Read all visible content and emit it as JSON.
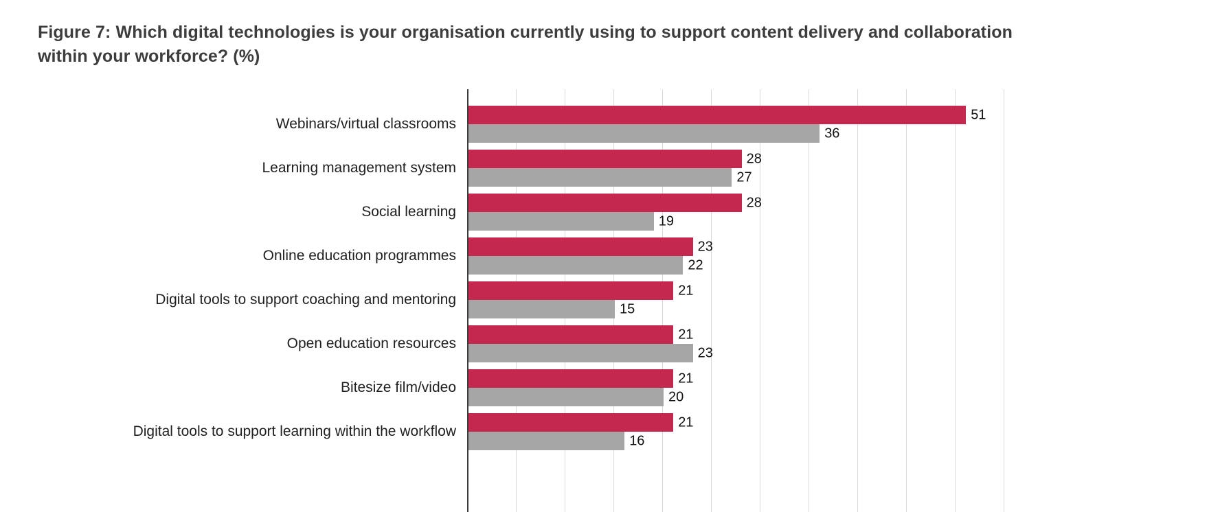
{
  "title": "Figure 7: Which digital technologies is your organisation currently using to support content delivery and collaboration within your workforce? (%)",
  "chart_data": {
    "type": "bar",
    "orientation": "horizontal",
    "title": "Figure 7: Which digital technologies is your organisation currently using to support content delivery and collaboration within your workforce? (%)",
    "categories": [
      "Webinars/virtual classrooms",
      "Learning management system",
      "Social learning",
      "Online education programmes",
      "Digital tools to support coaching and mentoring",
      "Open education resources",
      "Bitesize film/video",
      "Digital tools to support learning within the workflow"
    ],
    "series": [
      {
        "name": "red",
        "color": "#c5284f",
        "values": [
          51,
          28,
          28,
          23,
          21,
          21,
          21,
          21
        ]
      },
      {
        "name": "grey",
        "color": "#a6a6a6",
        "values": [
          36,
          27,
          19,
          22,
          15,
          23,
          20,
          16
        ]
      }
    ],
    "xlim": [
      0,
      56
    ],
    "gridline_interval": 5,
    "grid": true,
    "legend_position": "none",
    "value_labels": true,
    "xlabel": "",
    "ylabel": "",
    "axis_color": "#3c3c3c",
    "gridline_color": "#d9d9d9",
    "title_color": "#3d3d3d"
  }
}
